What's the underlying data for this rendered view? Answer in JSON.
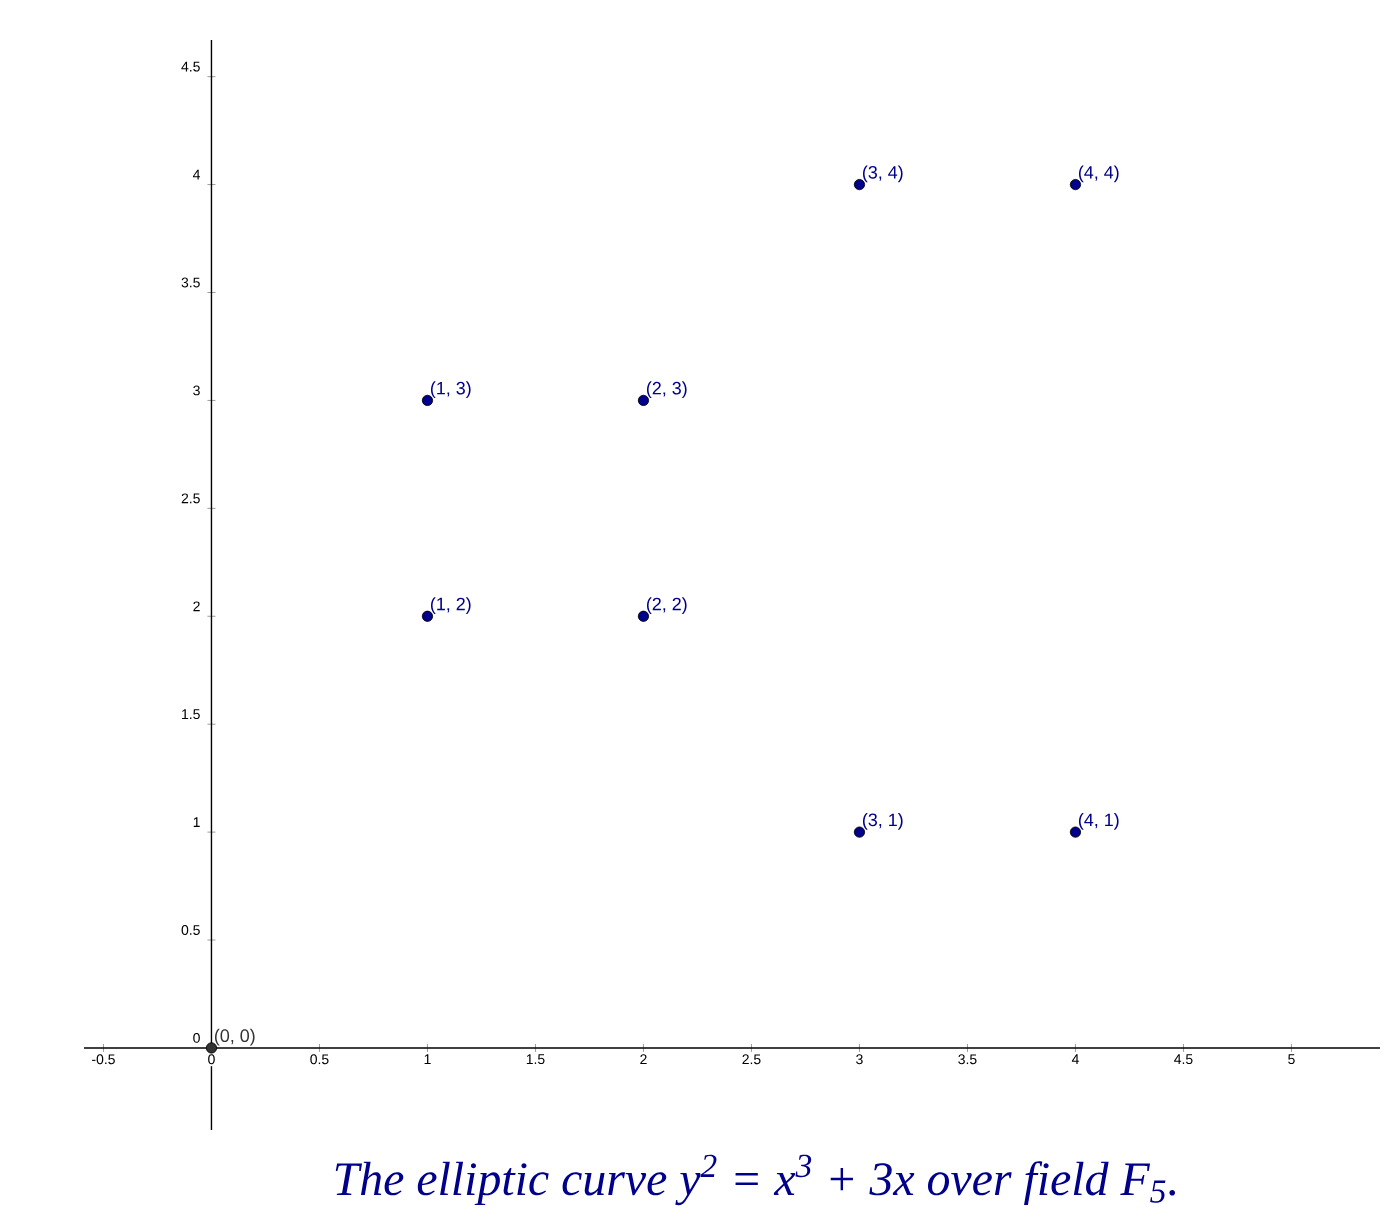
{
  "chart_data": {
    "type": "scatter",
    "title": "The elliptic curve y$^{2}$ = x$^{3}$ + 3x over field F$_{5}$.",
    "x": [
      0,
      1,
      1,
      2,
      2,
      3,
      3,
      4,
      4
    ],
    "values": [
      0,
      2,
      3,
      2,
      3,
      1,
      4,
      1,
      4
    ],
    "colors": [
      "#333333",
      "#00008b",
      "#00008b",
      "#00008b",
      "#00008b",
      "#00008b",
      "#00008b",
      "#00008b",
      "#00008b"
    ],
    "marker": "circle",
    "xlim": [
      -0.59,
      5.41
    ],
    "ylim": [
      -0.38,
      4.67
    ],
    "xticks": [
      -0.5,
      0,
      0.5,
      1,
      1.5,
      2,
      2.5,
      3,
      3.5,
      4,
      4.5,
      5
    ],
    "yticks": [
      0,
      0.5,
      1,
      1.5,
      2,
      2.5,
      3,
      3.5,
      4,
      4.5
    ],
    "annotations": [
      {
        "text": "(0, 0)",
        "x": 0,
        "y": 0
      },
      {
        "text": "(1, 2)",
        "x": 1,
        "y": 2
      },
      {
        "text": "(1, 3)",
        "x": 1,
        "y": 3
      },
      {
        "text": "(2, 2)",
        "x": 2,
        "y": 2
      },
      {
        "text": "(2, 3)",
        "x": 2,
        "y": 3
      },
      {
        "text": "(3, 1)",
        "x": 3,
        "y": 1
      },
      {
        "text": "(3, 4)",
        "x": 3,
        "y": 4
      },
      {
        "text": "(4, 1)",
        "x": 4,
        "y": 1
      },
      {
        "text": "(4, 4)",
        "x": 4,
        "y": 4
      }
    ]
  }
}
